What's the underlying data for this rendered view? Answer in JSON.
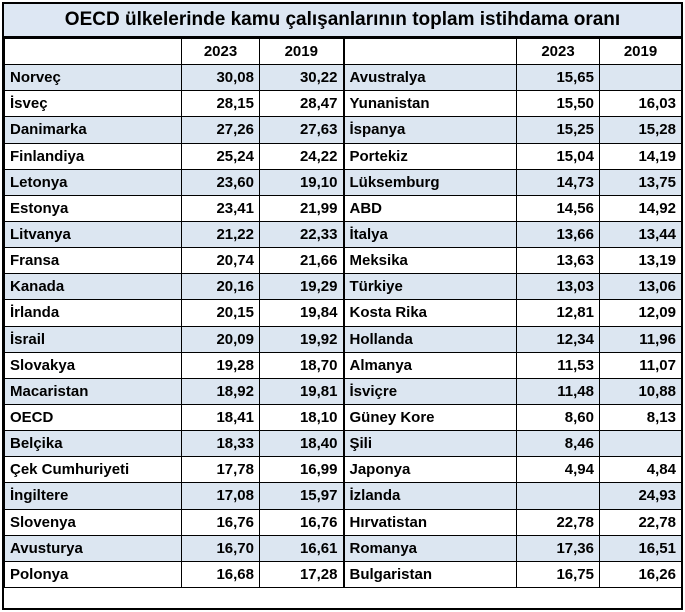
{
  "title": "OECD ülkelerinde kamu çalışanlarının toplam istihdama oranı",
  "headers": {
    "left_2023": "2023",
    "left_2019": "2019",
    "right_2023": "2023",
    "right_2019": "2019"
  },
  "rows": [
    {
      "left": {
        "country": "Norveç",
        "y2023": "30,08",
        "y2019": "30,22"
      },
      "right": {
        "country": "Avustralya",
        "y2023": "15,65",
        "y2019": ""
      }
    },
    {
      "left": {
        "country": "İsveç",
        "y2023": "28,15",
        "y2019": "28,47"
      },
      "right": {
        "country": "Yunanistan",
        "y2023": "15,50",
        "y2019": "16,03"
      }
    },
    {
      "left": {
        "country": "Danimarka",
        "y2023": "27,26",
        "y2019": "27,63"
      },
      "right": {
        "country": "İspanya",
        "y2023": "15,25",
        "y2019": "15,28"
      }
    },
    {
      "left": {
        "country": "Finlandiya",
        "y2023": "25,24",
        "y2019": "24,22"
      },
      "right": {
        "country": "Portekiz",
        "y2023": "15,04",
        "y2019": "14,19"
      }
    },
    {
      "left": {
        "country": "Letonya",
        "y2023": "23,60",
        "y2019": "19,10"
      },
      "right": {
        "country": "Lüksemburg",
        "y2023": "14,73",
        "y2019": "13,75"
      }
    },
    {
      "left": {
        "country": "Estonya",
        "y2023": "23,41",
        "y2019": "21,99"
      },
      "right": {
        "country": "ABD",
        "y2023": "14,56",
        "y2019": "14,92"
      }
    },
    {
      "left": {
        "country": "Litvanya",
        "y2023": "21,22",
        "y2019": "22,33"
      },
      "right": {
        "country": "İtalya",
        "y2023": "13,66",
        "y2019": "13,44"
      }
    },
    {
      "left": {
        "country": "Fransa",
        "y2023": "20,74",
        "y2019": "21,66"
      },
      "right": {
        "country": "Meksika",
        "y2023": "13,63",
        "y2019": "13,19"
      }
    },
    {
      "left": {
        "country": "Kanada",
        "y2023": "20,16",
        "y2019": "19,29"
      },
      "right": {
        "country": "Türkiye",
        "y2023": "13,03",
        "y2019": "13,06"
      }
    },
    {
      "left": {
        "country": "İrlanda",
        "y2023": "20,15",
        "y2019": "19,84"
      },
      "right": {
        "country": "Kosta Rika",
        "y2023": "12,81",
        "y2019": "12,09"
      }
    },
    {
      "left": {
        "country": "İsrail",
        "y2023": "20,09",
        "y2019": "19,92"
      },
      "right": {
        "country": "Hollanda",
        "y2023": "12,34",
        "y2019": "11,96"
      }
    },
    {
      "left": {
        "country": "Slovakya",
        "y2023": "19,28",
        "y2019": "18,70"
      },
      "right": {
        "country": "Almanya",
        "y2023": "11,53",
        "y2019": "11,07"
      }
    },
    {
      "left": {
        "country": "Macaristan",
        "y2023": "18,92",
        "y2019": "19,81"
      },
      "right": {
        "country": "İsviçre",
        "y2023": "11,48",
        "y2019": "10,88"
      }
    },
    {
      "left": {
        "country": "OECD",
        "y2023": "18,41",
        "y2019": "18,10"
      },
      "right": {
        "country": "Güney Kore",
        "y2023": "8,60",
        "y2019": "8,13"
      }
    },
    {
      "left": {
        "country": "Belçika",
        "y2023": "18,33",
        "y2019": "18,40"
      },
      "right": {
        "country": "Şili",
        "y2023": "8,46",
        "y2019": ""
      }
    },
    {
      "left": {
        "country": "Çek Cumhuriyeti",
        "y2023": "17,78",
        "y2019": "16,99"
      },
      "right": {
        "country": "Japonya",
        "y2023": "4,94",
        "y2019": "4,84"
      }
    },
    {
      "left": {
        "country": "İngiltere",
        "y2023": "17,08",
        "y2019": "15,97"
      },
      "right": {
        "country": "İzlanda",
        "y2023": "",
        "y2019": "24,93"
      }
    },
    {
      "left": {
        "country": "Slovenya",
        "y2023": "16,76",
        "y2019": "16,76"
      },
      "right": {
        "country": "Hırvatistan",
        "y2023": "22,78",
        "y2019": "22,78"
      }
    },
    {
      "left": {
        "country": "Avusturya",
        "y2023": "16,70",
        "y2019": "16,61"
      },
      "right": {
        "country": "Romanya",
        "y2023": "17,36",
        "y2019": "16,51"
      }
    },
    {
      "left": {
        "country": "Polonya",
        "y2023": "16,68",
        "y2019": "17,28"
      },
      "right": {
        "country": "Bulgaristan",
        "y2023": "16,75",
        "y2019": "16,26"
      }
    }
  ]
}
